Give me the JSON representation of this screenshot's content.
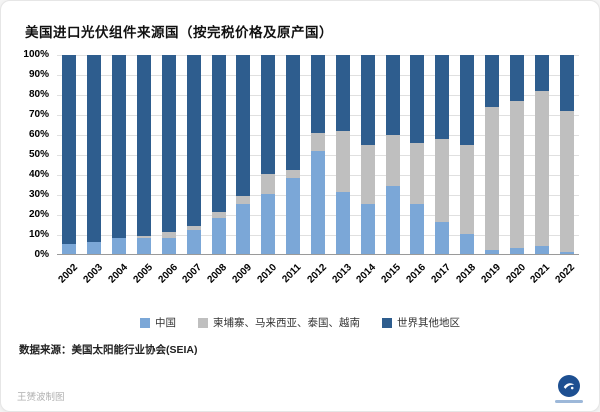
{
  "title": "美国进口光伏组件来源国（按完税价格及原产国）",
  "source": "数据来源：美国太阳能行业协会(SEIA)",
  "credit": "王赟波制图",
  "colors": {
    "china": "#7BA7D7",
    "sea": "#BFBFBF",
    "row": "#2E5D8E"
  },
  "chart_data": {
    "type": "bar",
    "stacked": true,
    "title": "美国进口光伏组件来源国（按完税价格及原产国）",
    "xlabel": "",
    "ylabel": "",
    "ylim": [
      0,
      100
    ],
    "grid": true,
    "legend_position": "bottom",
    "yticks": [
      "0%",
      "10%",
      "20%",
      "30%",
      "40%",
      "50%",
      "60%",
      "70%",
      "80%",
      "90%",
      "100%"
    ],
    "categories": [
      "2002",
      "2003",
      "2004",
      "2005",
      "2006",
      "2007",
      "2008",
      "2009",
      "2010",
      "2011",
      "2012",
      "2013",
      "2014",
      "2015",
      "2016",
      "2017",
      "2018",
      "2019",
      "2020",
      "2021",
      "2022"
    ],
    "series": [
      {
        "name": "中国",
        "color": "#7BA7D7",
        "values": [
          5,
          6,
          8,
          8,
          8,
          12,
          18,
          25,
          30,
          38,
          52,
          31,
          25,
          34,
          25,
          16,
          10,
          2,
          3,
          4,
          1
        ]
      },
      {
        "name": "柬埔寨、马来西亚、泰国、越南",
        "color": "#BFBFBF",
        "values": [
          0,
          0,
          0,
          1,
          3,
          2,
          3,
          4,
          10,
          4,
          9,
          31,
          30,
          26,
          31,
          42,
          45,
          72,
          74,
          78,
          71
        ]
      },
      {
        "name": "世界其他地区",
        "color": "#2E5D8E",
        "values": [
          95,
          94,
          92,
          91,
          89,
          86,
          79,
          71,
          60,
          58,
          39,
          38,
          45,
          40,
          44,
          42,
          45,
          26,
          23,
          18,
          28
        ]
      }
    ]
  }
}
